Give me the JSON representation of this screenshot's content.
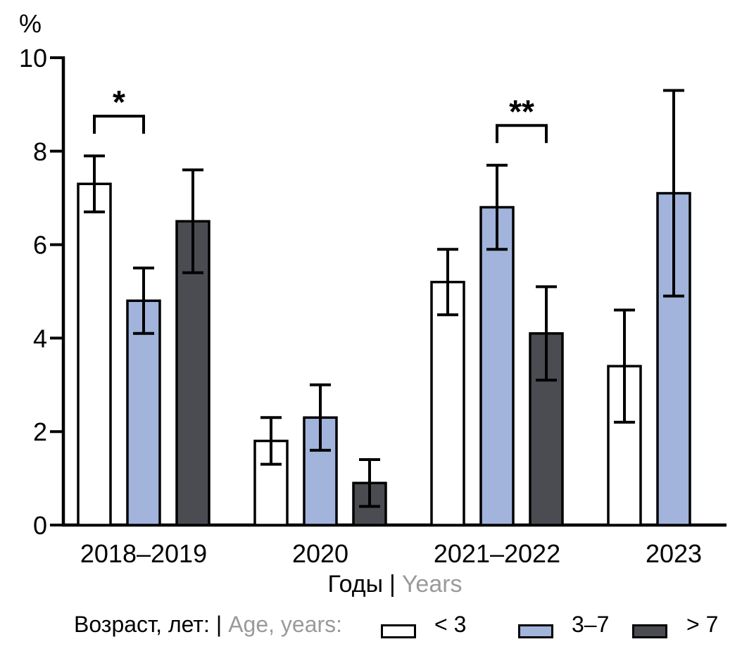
{
  "chart_data": {
    "type": "bar",
    "title": "",
    "y_unit": "%",
    "ylim": [
      0,
      10
    ],
    "yticks": [
      0,
      2,
      4,
      6,
      8,
      10
    ],
    "grid": false,
    "legend_position": "bottom",
    "xlabel": {
      "ru": "Годы",
      "sep": "|",
      "en": "Years"
    },
    "categories": [
      "2018–2019",
      "2020",
      "2021–2022",
      "2023"
    ],
    "series": [
      {
        "name": "< 3",
        "color": "#ffffff",
        "values": [
          7.3,
          1.8,
          5.2,
          3.4
        ],
        "err_low": [
          6.7,
          1.3,
          4.5,
          2.2
        ],
        "err_high": [
          7.9,
          2.3,
          5.9,
          4.6
        ]
      },
      {
        "name": "3–7",
        "color": "#a2b4dc",
        "values": [
          4.8,
          2.3,
          6.8,
          7.1
        ],
        "err_low": [
          4.1,
          1.6,
          5.9,
          4.9
        ],
        "err_high": [
          5.5,
          3.0,
          7.7,
          9.3
        ]
      },
      {
        "name": "> 7",
        "color": "#4b4c52",
        "values": [
          6.5,
          0.9,
          4.1,
          null
        ],
        "err_low": [
          5.4,
          0.4,
          3.1,
          null
        ],
        "err_high": [
          7.6,
          1.4,
          5.1,
          null
        ]
      }
    ],
    "significance": [
      {
        "group": 0,
        "from": 0,
        "to": 1,
        "label": "*"
      },
      {
        "group": 2,
        "from": 1,
        "to": 2,
        "label": "**"
      }
    ],
    "legend": {
      "title_ru": "Возраст, лет:",
      "sep": "|",
      "title_en": "Age, years:"
    }
  }
}
